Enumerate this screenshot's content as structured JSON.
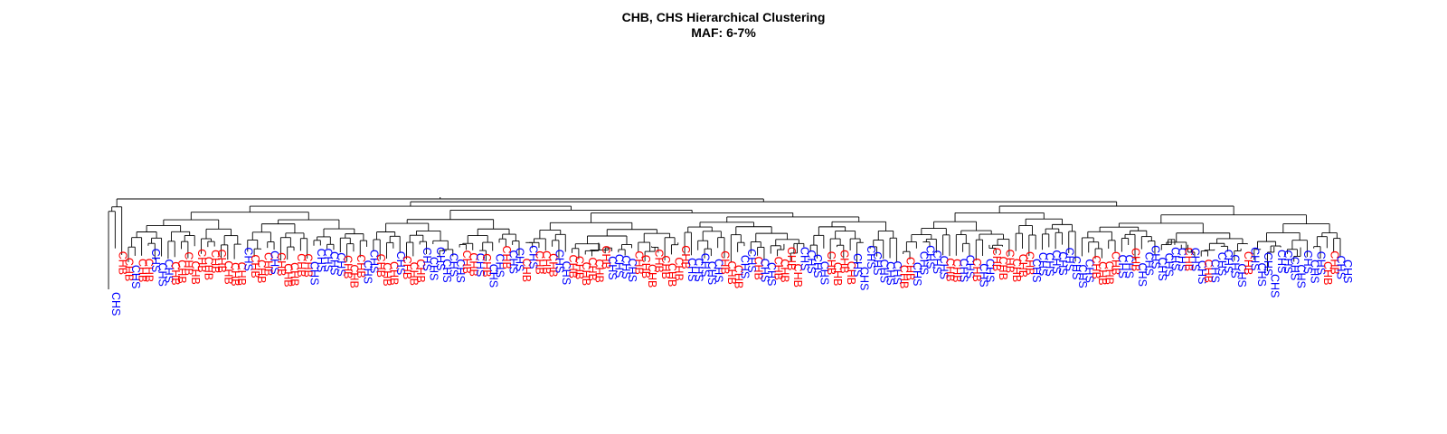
{
  "title_line1": "CHB, CHS Hierarchical Clustering",
  "title_line2": "MAF: 6-7%",
  "colors": {
    "CHB": "#ff0000",
    "CHS": "#0000ff",
    "branch": "#000000"
  },
  "chart_data": {
    "type": "dendrogram",
    "title": "CHB, CHS Hierarchical Clustering",
    "subtitle": "MAF: 6-7%",
    "xlabel": "",
    "ylabel": "",
    "axes_visible": false,
    "grid": false,
    "label_orientation": "vertical",
    "populations": [
      "CHB",
      "CHS"
    ],
    "leaf_labels": [
      "CHS",
      "CHB",
      "CHB",
      "CHS",
      "CHB",
      "CHB",
      "CHS",
      "CHS",
      "CHS",
      "CHB",
      "CHB",
      "CHB",
      "CHB",
      "CHB",
      "CHB",
      "CHB",
      "CHB",
      "CHB",
      "CHB",
      "CHB",
      "CHS",
      "CHB",
      "CHB",
      "CHB",
      "CHS",
      "CHB",
      "CHB",
      "CHB",
      "CHB",
      "CHB",
      "CHS",
      "CHS",
      "CHS",
      "CHS",
      "CHS",
      "CHB",
      "CHB",
      "CHB",
      "CHS",
      "CHS",
      "CHB",
      "CHB",
      "CHB",
      "CHS",
      "CHB",
      "CHB",
      "CHB",
      "CHS",
      "CHS",
      "CHS",
      "CHS",
      "CHS",
      "CHS",
      "CHB",
      "CHB",
      "CHS",
      "CHB",
      "CHS",
      "CHS",
      "CHB",
      "CHS",
      "CHS",
      "CHB",
      "CHS",
      "CHB",
      "CHB",
      "CHB",
      "CHS",
      "CHS",
      "CHB",
      "CHB",
      "CHB",
      "CHB",
      "CHB",
      "CHB",
      "CHS",
      "CHS",
      "CHS",
      "CHS",
      "CHB",
      "CHB",
      "CHB",
      "CHB",
      "CHB",
      "CHB",
      "CHB",
      "CHB",
      "CHS",
      "CHS",
      "CHS",
      "CHS",
      "CHS",
      "CHB",
      "CHB",
      "CHB",
      "CHS",
      "CHS",
      "CHB",
      "CHS",
      "CHS",
      "CHB",
      "CHB",
      "CHB",
      "CHB",
      "CHS",
      "CHS",
      "CHS",
      "CHS",
      "CHB",
      "CHB",
      "CHB",
      "CHB",
      "CHS",
      "CHS",
      "CHS",
      "CHS",
      "CHS",
      "CHS",
      "CHS",
      "CHB",
      "CHB",
      "CHS",
      "CHS",
      "CHS",
      "CHS",
      "CHS",
      "CHB",
      "CHB",
      "CHS",
      "CHS",
      "CHB",
      "CHS",
      "CHS",
      "CHB",
      "CHB",
      "CHB",
      "CHB",
      "CHB",
      "CHB",
      "CHS",
      "CHS",
      "CHS",
      "CHS",
      "CHS",
      "CHS",
      "CHS",
      "CHS",
      "CHS",
      "CHB",
      "CHB",
      "CHB",
      "CHB",
      "CHS",
      "CHS",
      "CHB",
      "CHS",
      "CHS",
      "CHS",
      "CHS",
      "CHS",
      "CHS",
      "CHS",
      "CHB",
      "CHS",
      "CHS",
      "CHB",
      "CHS",
      "CHS",
      "CHS",
      "CHS",
      "CHS",
      "CHB",
      "CHS",
      "CHS",
      "CHS",
      "CHS",
      "CHS",
      "CHS",
      "CHS",
      "CHS",
      "CHS",
      "CHS",
      "CHS",
      "CHB",
      "CHB",
      "CHS",
      "CHS"
    ]
  }
}
